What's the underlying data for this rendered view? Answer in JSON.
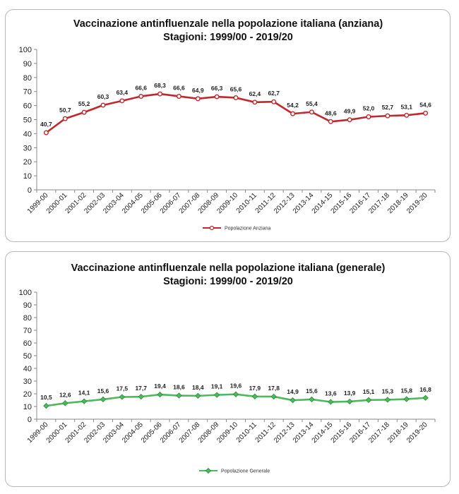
{
  "chart_data": [
    {
      "type": "line",
      "title": "Vaccinazione antinfluenzale nella popolazione italiana (anziana)",
      "subtitle": "Stagioni: 1999/00 - 2019/20",
      "categories": [
        "1999-00",
        "2000-01",
        "2001-02",
        "2002-03",
        "2003-04",
        "2004-05",
        "2005-06",
        "2006-07",
        "2007-08",
        "2008-09",
        "2009-10",
        "2010-11",
        "2011-12",
        "2012-13",
        "2013-14",
        "2014-15",
        "2015-16",
        "2016-17",
        "2017-18",
        "2018-19",
        "2019-20"
      ],
      "series": [
        {
          "name": "Popolazione Anziana",
          "values": [
            40.7,
            50.7,
            55.2,
            60.3,
            63.4,
            66.6,
            68.3,
            66.6,
            64.9,
            66.3,
            65.6,
            62.4,
            62.7,
            54.2,
            55.4,
            48.6,
            49.9,
            52.0,
            52.7,
            53.1,
            54.6
          ],
          "labels": [
            "40,7",
            "50,7",
            "55,2",
            "60,3",
            "63,4",
            "66,6",
            "68,3",
            "66,6",
            "64,9",
            "66,3",
            "65,6",
            "62,4",
            "62,7",
            "54,2",
            "55,4",
            "48,6",
            "49,9",
            "52,0",
            "52,7",
            "53,1",
            "54,6"
          ],
          "color": "#c0282d",
          "marker": "circle"
        }
      ],
      "ylim": [
        0,
        100
      ],
      "yticks": [
        "0",
        "10",
        "20",
        "30",
        "40",
        "50",
        "60",
        "70",
        "80",
        "90",
        "100"
      ],
      "xlabel": "",
      "ylabel": "",
      "grid": false,
      "legend_position": "bottom"
    },
    {
      "type": "line",
      "title": "Vaccinazione antinfluenzale nella popolazione italiana (generale)",
      "subtitle": "Stagioni: 1999/00 - 2019/20",
      "categories": [
        "1999-00",
        "2000-01",
        "2001-02",
        "2002-03",
        "2003-04",
        "2004-05",
        "2005-06",
        "2006-07",
        "2007-08",
        "2008-09",
        "2009-10",
        "2010-11",
        "2011-12",
        "2012-13",
        "2013-14",
        "2014-15",
        "2015-16",
        "2016-17",
        "2017-18",
        "2018-19",
        "2019-20"
      ],
      "series": [
        {
          "name": "Popolazione Generale",
          "values": [
            10.5,
            12.6,
            14.1,
            15.6,
            17.5,
            17.7,
            19.4,
            18.6,
            18.4,
            19.1,
            19.6,
            17.9,
            17.8,
            14.9,
            15.6,
            13.6,
            13.9,
            15.1,
            15.3,
            15.8,
            16.8
          ],
          "labels": [
            "10,5",
            "12,6",
            "14,1",
            "15,6",
            "17,5",
            "17,7",
            "19,4",
            "18,6",
            "18,4",
            "19,1",
            "19,6",
            "17,9",
            "17,8",
            "14,9",
            "15,6",
            "13,6",
            "13,9",
            "15,1",
            "15,3",
            "15,8",
            "16,8"
          ],
          "color": "#4cba5c",
          "marker": "diamond"
        }
      ],
      "ylim": [
        0,
        100
      ],
      "yticks": [
        "0",
        "10",
        "20",
        "30",
        "40",
        "50",
        "60",
        "70",
        "80",
        "90",
        "100"
      ],
      "xlabel": "",
      "ylabel": "",
      "grid": false,
      "legend_position": "bottom"
    }
  ]
}
